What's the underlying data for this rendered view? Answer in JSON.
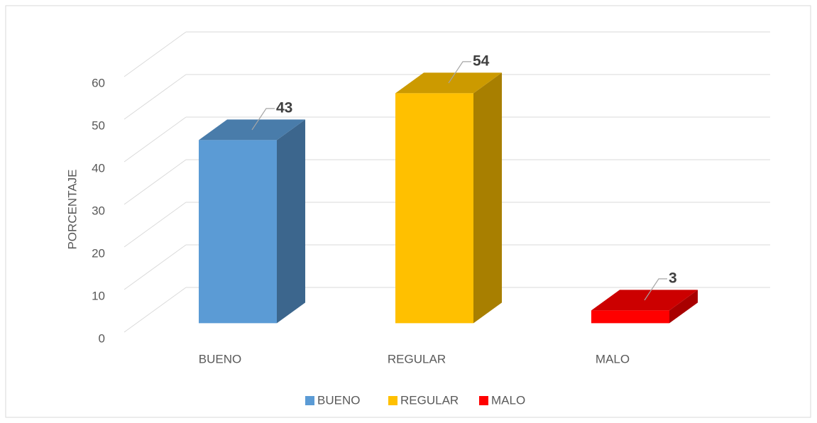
{
  "chart_data": {
    "type": "bar3d",
    "y_label": "PORCENTAJE",
    "categories": [
      "BUENO",
      "REGULAR",
      "MALO"
    ],
    "values": [
      43,
      54,
      3
    ],
    "colors": [
      "#5b9bd5",
      "#ffc000",
      "#ff0000"
    ],
    "ylim": [
      0,
      60
    ],
    "yticks": [
      0,
      10,
      20,
      30,
      40,
      50,
      60
    ],
    "grid": true,
    "legend": "bottom"
  }
}
